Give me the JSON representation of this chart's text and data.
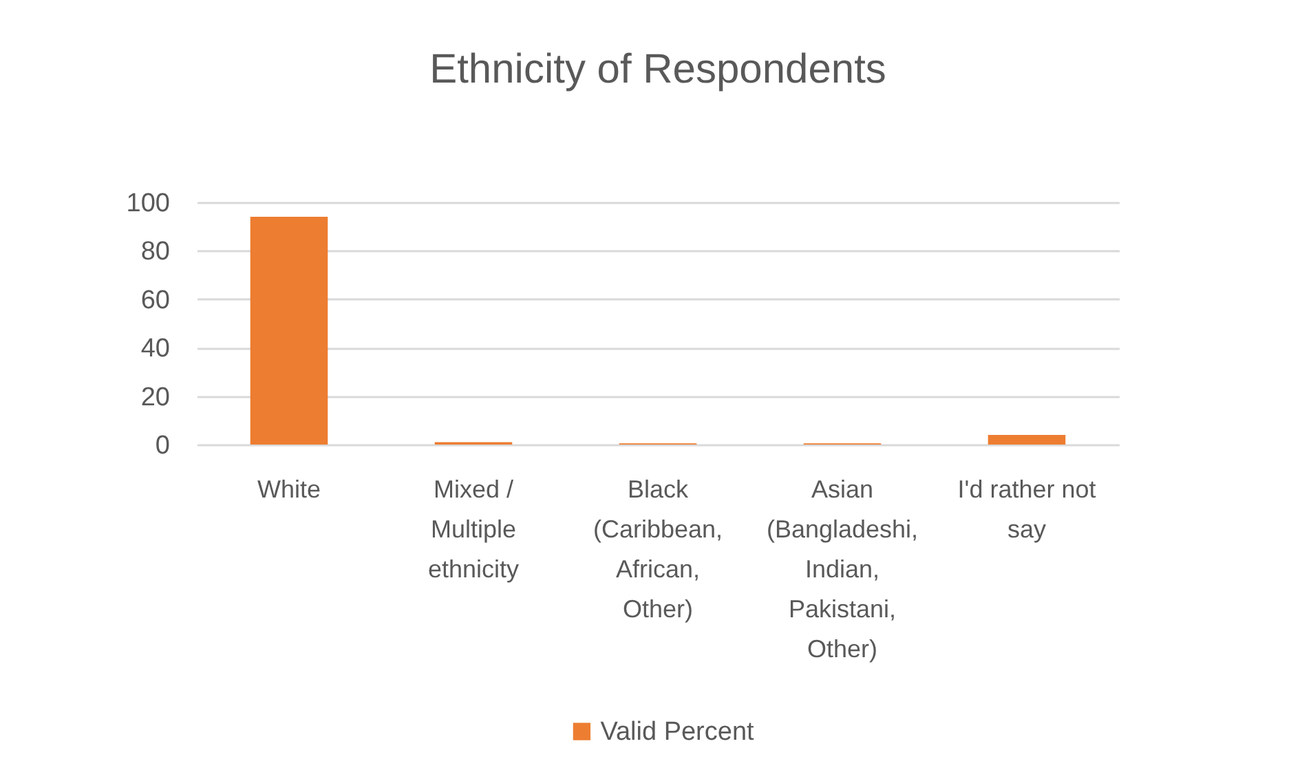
{
  "chart_data": {
    "type": "bar",
    "title": "Ethnicity of Respondents",
    "categories": [
      "White",
      "Mixed / Multiple ethnicity",
      "Black (Caribbean, African, Other)",
      "Asian (Bangladeshi, Indian, Pakistani, Other)",
      "I'd rather not say"
    ],
    "series": [
      {
        "name": "Valid Percent",
        "color": "#ed7d31",
        "values": [
          94,
          1,
          0.5,
          0.5,
          4
        ]
      }
    ],
    "ylim": [
      0,
      100
    ],
    "yticks": [
      0,
      20,
      40,
      60,
      80,
      100
    ],
    "grid": "y",
    "legend": "bottom"
  }
}
